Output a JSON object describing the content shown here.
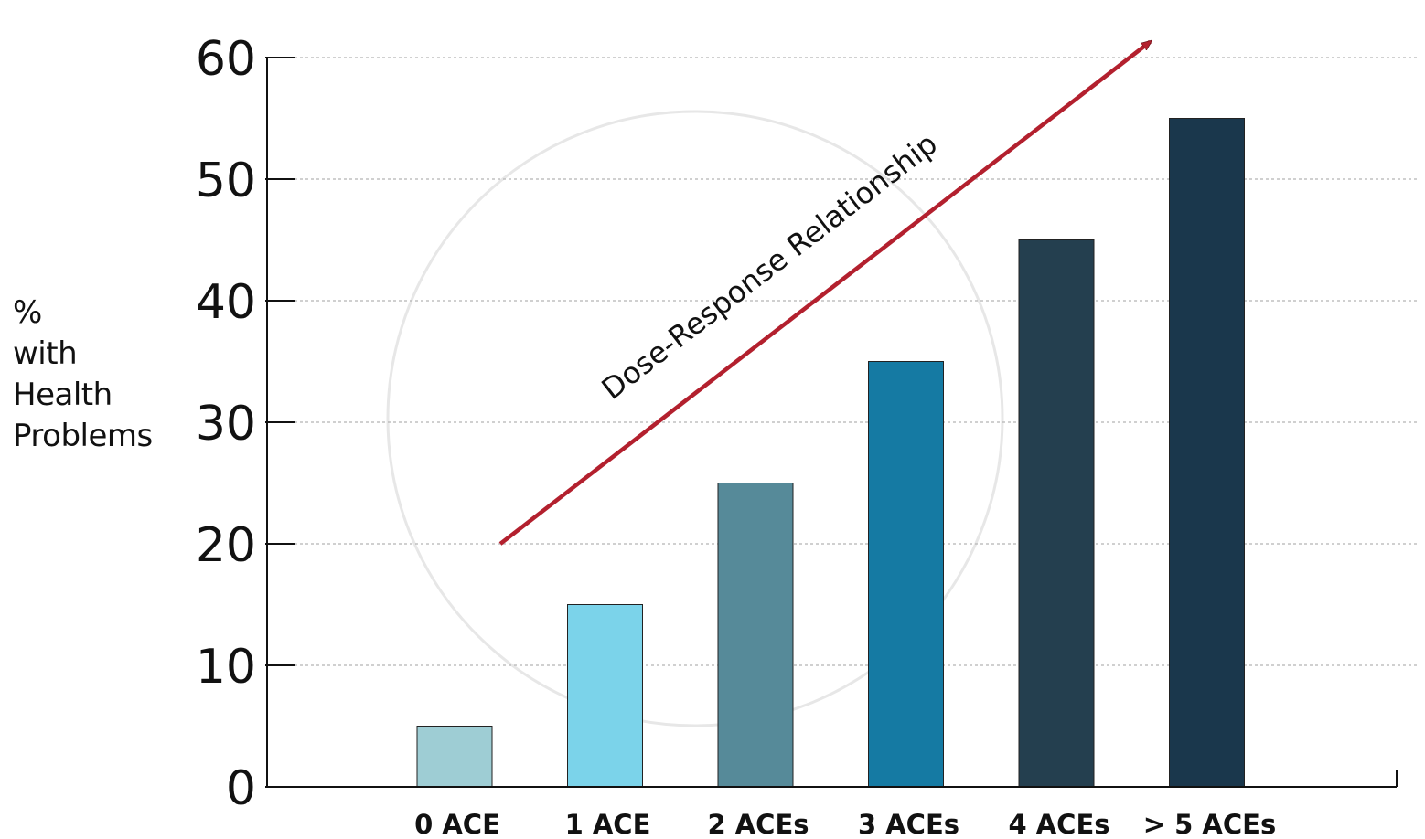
{
  "chart_data": {
    "type": "bar",
    "title": "",
    "xlabel": "",
    "ylabel_lines": [
      "%",
      "with",
      "Health",
      "Problems"
    ],
    "categories": [
      "0 ACE",
      "1 ACE",
      "2 ACEs",
      "3 ACEs",
      "4 ACEs",
      "> 5 ACEs"
    ],
    "values": [
      5,
      15,
      25,
      35,
      45,
      55
    ],
    "bar_colors": [
      "#9ecdd4",
      "#7bd3ea",
      "#568a99",
      "#157aa3",
      "#243f4f",
      "#1a374c"
    ],
    "ylim": [
      0,
      60
    ],
    "yticks": [
      0,
      10,
      20,
      30,
      40,
      50,
      60
    ],
    "grid": true,
    "annotation": {
      "text": "Dose-Response Relationship",
      "color": "#b3202e",
      "from": {
        "category": "0 ACE",
        "y": 20
      },
      "to": {
        "category": "> 5 ACEs",
        "y": 61.3
      }
    }
  }
}
